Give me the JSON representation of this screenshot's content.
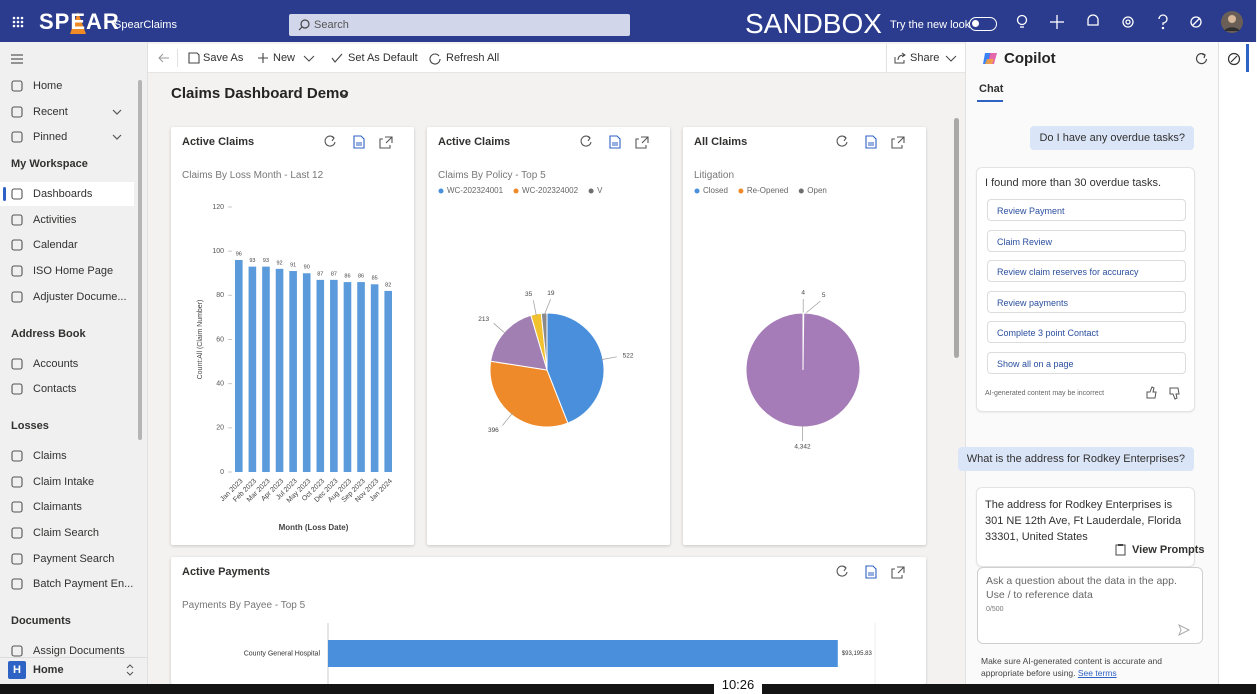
{
  "top_bar": {
    "logo": "SPEAR",
    "app_name": "SpearClaims",
    "search": "Search",
    "environment": "SANDBOX",
    "try_new_look": "Try the new look"
  },
  "nav": {
    "sections": [
      {
        "items": [
          "Home",
          "Recent",
          "Pinned"
        ]
      },
      {
        "header": "My Workspace",
        "items": [
          "Dashboards",
          "Activities",
          "Calendar",
          "ISO Home Page",
          "Adjuster Docume..."
        ]
      },
      {
        "header": "Address Book",
        "items": [
          "Accounts",
          "Contacts"
        ]
      },
      {
        "header": "Losses",
        "items": [
          "Claims",
          "Claim Intake",
          "Claimants",
          "Claim Search",
          "Payment Search",
          "Batch Payment En..."
        ]
      },
      {
        "header": "Documents",
        "items": [
          "Assign Documents"
        ]
      }
    ],
    "area_badge": "H",
    "area": "Home"
  },
  "toolbar": {
    "actions": [
      "Save As",
      "New",
      "Set As Default",
      "Refresh All"
    ],
    "share": "Share"
  },
  "dashboard_title": "Claims Dashboard Demo",
  "chart_data": [
    {
      "type": "bar",
      "title": "Active Claims",
      "subtitle": "Claims By Loss Month - Last 12",
      "x_label": "Month (Loss Date)",
      "y_label": "Count:All (Claim Number)",
      "categories": [
        "Jan 2023",
        "Feb 2023",
        "Mar 2023",
        "Apr 2023",
        "Jul 2023",
        "May 2023",
        "Oct 2023",
        "Dec 2023",
        "Aug 2023",
        "Sep 2023",
        "Nov 2023",
        "Jan 2024"
      ],
      "values": [
        96,
        93,
        93,
        92,
        91,
        90,
        87,
        87,
        86,
        86,
        85,
        82
      ],
      "color": "#5b9bdc",
      "ylim": [
        0,
        120
      ],
      "yticks": [
        0,
        20,
        40,
        60,
        80,
        100,
        120
      ],
      "data_labels": true
    },
    {
      "type": "pie",
      "title": "Active Claims",
      "subtitle": "Claims By Policy - Top 5",
      "legend": [
        {
          "name": "WC-202324001",
          "color": "#4a8fdc"
        },
        {
          "name": "WC-202324002",
          "color": "#ef8a2b"
        },
        {
          "name": "V",
          "color": "#6e6e6e"
        }
      ],
      "values": [
        522,
        396,
        213,
        35,
        19
      ],
      "colors": [
        "#4a8fdc",
        "#ef8a2b",
        "#a17fb3",
        "#f2c12e",
        "#8a8a8a"
      ]
    },
    {
      "type": "pie",
      "title": "All Claims",
      "subtitle": "Litigation",
      "legend": [
        {
          "name": "Closed",
          "color": "#4a8fdc"
        },
        {
          "name": "Re-Opened",
          "color": "#ef8a2b"
        },
        {
          "name": "Open",
          "color": "#6e6e6e"
        }
      ],
      "values": [
        4,
        5,
        4342
      ],
      "value_labels": [
        "4",
        "5",
        "4,342"
      ],
      "colors": [
        "#4a8fdc",
        "#ef8a2b",
        "#a57cb7"
      ]
    },
    {
      "type": "hbar",
      "title": "Active Payments",
      "subtitle": "Payments By Payee - Top 5",
      "categories": [
        "County General Hospital"
      ],
      "values": [
        93195.83
      ],
      "value_labels": [
        "$93,195.83"
      ],
      "color": "#4a8fdc",
      "xlim": [
        0,
        100000
      ]
    }
  ],
  "copilot": {
    "title": "Copilot",
    "tab": "Chat",
    "messages": [
      {
        "role": "user",
        "text": "Do I have any overdue tasks?"
      },
      {
        "role": "assistant",
        "text": "I found more than 30 overdue tasks.",
        "suggestions": [
          "Review Payment",
          "Claim Review",
          "Review claim reserves for accuracy",
          "Review payments",
          "Complete 3 point Contact",
          "Show all on a page"
        ],
        "disclaimer": "AI-generated content may be incorrect"
      },
      {
        "role": "user",
        "text": "What is the address for Rodkey Enterprises?"
      },
      {
        "role": "assistant",
        "text": "The address for Rodkey Enterprises is 301 NE 12th Ave, Ft Lauderdale, Florida 33301, United States"
      }
    ],
    "view_prompts": "View Prompts",
    "input_placeholder": "Ask a question about the data in the app. Use / to reference data",
    "char_count": "0/500",
    "footer": "Make sure AI-generated content is accurate and appropriate before using.",
    "footer_link": "See terms"
  },
  "clock": "10:26"
}
